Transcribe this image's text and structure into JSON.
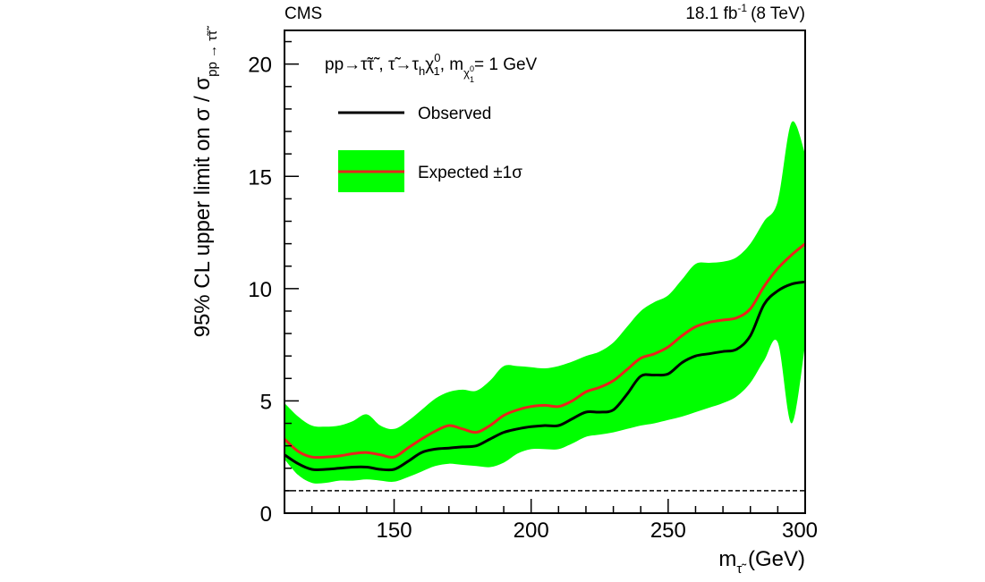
{
  "header": {
    "experiment": "CMS",
    "lumi_value": "18.1 fb",
    "lumi_exp": "-1",
    "lumi_energy": "(8 TeV)"
  },
  "legend": {
    "process_prefix": "pp→",
    "process_stau_pair": "τ̃τ̃",
    "process_sep": " , ",
    "process_decay_stau": "τ̃",
    "process_arrow": "→",
    "process_tau": "τ",
    "process_tau_sub": "h",
    "process_chi": "χ",
    "process_chi_sup": "0",
    "process_chi_sub": "1",
    "process_mass_sep": ", m",
    "process_mass_sub_chi": "χ",
    "process_mass_sub_sup": "0",
    "process_mass_sub_sub": "1",
    "process_mass_value": "= 1 GeV",
    "observed_label": "Observed",
    "expected_label": "Expected",
    "expected_band_label": "±1σ"
  },
  "axes": {
    "xlabel_main": "m",
    "xlabel_sub": "τ̃",
    "xlabel_unit": " (GeV)",
    "ylabel_main": "95% CL upper limit on σ / σ",
    "ylabel_sub": "pp → τ̃τ̃"
  },
  "colors": {
    "observed": "#000000",
    "expected": "#e8241c",
    "band": "#00ff00",
    "reference": "#000000"
  },
  "chart_data": {
    "type": "line",
    "xlim": [
      110,
      300
    ],
    "ylim": [
      0,
      21.5
    ],
    "x_ticks": [
      150,
      200,
      250,
      300
    ],
    "y_ticks": [
      0,
      5,
      10,
      15,
      20
    ],
    "grid": false,
    "legend_position": "top-left",
    "reference_line": {
      "y": 1.0,
      "style": "dashed"
    },
    "x": [
      110,
      115,
      120,
      125,
      130,
      135,
      140,
      145,
      150,
      155,
      160,
      165,
      170,
      175,
      180,
      185,
      190,
      195,
      200,
      205,
      210,
      215,
      220,
      225,
      230,
      235,
      240,
      245,
      250,
      255,
      260,
      265,
      270,
      275,
      280,
      285,
      290,
      295,
      300
    ],
    "series": [
      {
        "name": "Observed",
        "values": [
          2.6,
          2.2,
          1.95,
          1.95,
          2.0,
          2.05,
          2.05,
          1.95,
          1.95,
          2.3,
          2.7,
          2.85,
          2.9,
          2.95,
          3.0,
          3.3,
          3.6,
          3.75,
          3.85,
          3.9,
          3.9,
          4.2,
          4.5,
          4.5,
          4.6,
          5.3,
          6.1,
          6.15,
          6.2,
          6.7,
          7.0,
          7.1,
          7.2,
          7.3,
          7.9,
          9.3,
          9.9,
          10.2,
          10.3
        ]
      },
      {
        "name": "Expected",
        "values": [
          3.3,
          2.75,
          2.5,
          2.5,
          2.55,
          2.65,
          2.7,
          2.6,
          2.5,
          2.9,
          3.3,
          3.65,
          3.9,
          3.75,
          3.6,
          3.9,
          4.35,
          4.6,
          4.75,
          4.8,
          4.75,
          5.0,
          5.4,
          5.6,
          5.9,
          6.4,
          6.9,
          7.1,
          7.4,
          7.9,
          8.3,
          8.5,
          8.6,
          8.7,
          9.1,
          10.1,
          10.9,
          11.5,
          12.0
        ]
      },
      {
        "name": "Expected ±1σ",
        "lower": [
          2.4,
          1.7,
          1.35,
          1.35,
          1.45,
          1.45,
          1.5,
          1.45,
          1.4,
          1.6,
          1.85,
          2.1,
          2.2,
          2.15,
          2.1,
          2.05,
          2.25,
          2.65,
          2.85,
          2.85,
          2.85,
          3.1,
          3.4,
          3.5,
          3.6,
          3.75,
          3.9,
          4.0,
          4.15,
          4.3,
          4.5,
          4.7,
          4.9,
          5.2,
          5.8,
          6.8,
          7.6,
          4.0,
          7.5
        ],
        "upper": [
          4.9,
          4.3,
          3.9,
          3.85,
          3.9,
          4.1,
          4.4,
          3.9,
          3.75,
          4.1,
          4.6,
          5.1,
          5.4,
          5.5,
          5.45,
          5.9,
          6.55,
          6.55,
          6.5,
          6.45,
          6.55,
          6.75,
          7.0,
          7.2,
          7.6,
          8.3,
          9.0,
          9.4,
          9.7,
          10.4,
          11.1,
          11.15,
          11.2,
          11.4,
          12.0,
          13.0,
          13.9,
          17.4,
          16.0
        ]
      }
    ]
  }
}
